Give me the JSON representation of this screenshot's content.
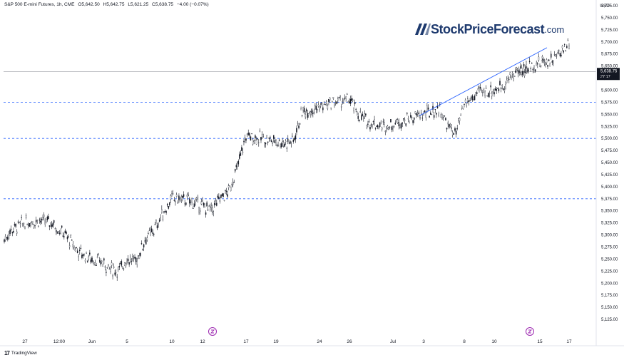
{
  "header": {
    "instrument": "S&P 500 E-mini Futures, 1h, CME",
    "open": "O5,642.50",
    "high": "H5,642.75",
    "low": "L5,621.25",
    "close": "C5,638.75",
    "change": "−4.00 (−0.07%)"
  },
  "currency": "USD",
  "brand": {
    "name": "StockPriceForecast",
    "domain": ".com"
  },
  "footer": {
    "logo": "17",
    "name": "TradingView"
  },
  "price_tag": {
    "price": "5,638.75",
    "countdown": "27:17"
  },
  "colors": {
    "candle": "#131722",
    "trendline": "#2962ff",
    "hline": "#2962ff",
    "last_price_line": "#787b86",
    "event_icon": "#9c27b0",
    "brand": "#1e3a6e"
  },
  "chart_data": {
    "type": "candlestick",
    "ylim": [
      5100,
      5775
    ],
    "y_ticks": [
      "5,775.00",
      "5,750.00",
      "5,725.00",
      "5,700.00",
      "5,675.00",
      "5,650.00",
      "5,625.00",
      "5,600.00",
      "5,575.00",
      "5,550.00",
      "5,525.00",
      "5,500.00",
      "5,475.00",
      "5,450.00",
      "5,425.00",
      "5,400.00",
      "5,375.00",
      "5,350.00",
      "5,325.00",
      "5,300.00",
      "5,275.00",
      "5,250.00",
      "5,225.00",
      "5,200.00",
      "5,175.00",
      "5,150.00",
      "5,125.00"
    ],
    "x_ticks": [
      "27",
      "12:00",
      "Jun",
      "5",
      "10",
      "12",
      "17",
      "19",
      "24",
      "26",
      "Jul",
      "3",
      "8",
      "10",
      "15",
      "17"
    ],
    "horizontal_lines": [
      5575,
      5500,
      5375
    ],
    "last_price": 5638.75,
    "trendline": {
      "from": [
        "Jul 2",
        5547
      ],
      "to": [
        "Jul 12",
        5688
      ]
    },
    "event_markers": [
      "Jun 13",
      "Jul 13"
    ],
    "path": [
      [
        "May 24",
        5290
      ],
      [
        "May 25",
        5310
      ],
      [
        "May 26",
        5318
      ],
      [
        "May 27",
        5325
      ],
      [
        "May 28",
        5330
      ],
      [
        "May 29",
        5325
      ],
      [
        "May 30",
        5300
      ],
      [
        "May 31",
        5265
      ],
      [
        "Jun 1",
        5250
      ],
      [
        "Jun 2",
        5245
      ],
      [
        "Jun 3",
        5230
      ],
      [
        "Jun 4",
        5225
      ],
      [
        "Jun 5",
        5250
      ],
      [
        "Jun 6",
        5245
      ],
      [
        "Jun 7",
        5290
      ],
      [
        "Jun 8",
        5310
      ],
      [
        "Jun 9",
        5345
      ],
      [
        "Jun 10",
        5375
      ],
      [
        "Jun 11",
        5372
      ],
      [
        "Jun 12",
        5360
      ],
      [
        "Jun 13",
        5350
      ],
      [
        "Jun 14",
        5375
      ],
      [
        "Jun 15",
        5390
      ],
      [
        "Jun 16",
        5440
      ],
      [
        "Jun 17",
        5505
      ],
      [
        "Jun 18",
        5500
      ],
      [
        "Jun 19",
        5495
      ],
      [
        "Jun 20",
        5490
      ],
      [
        "Jun 21",
        5495
      ],
      [
        "Jun 22",
        5555
      ],
      [
        "Jun 23",
        5560
      ],
      [
        "Jun 24",
        5565
      ],
      [
        "Jun 25",
        5575
      ],
      [
        "Jun 26",
        5580
      ],
      [
        "Jun 27",
        5550
      ],
      [
        "Jun 28",
        5535
      ],
      [
        "Jun 29",
        5530
      ],
      [
        "Jun 30",
        5525
      ],
      [
        "Jul 1",
        5530
      ],
      [
        "Jul 2",
        5540
      ],
      [
        "Jul 3",
        5550
      ],
      [
        "Jul 4",
        5555
      ],
      [
        "Jul 5",
        5560
      ],
      [
        "Jul 6",
        5525
      ],
      [
        "Jul 7",
        5510
      ],
      [
        "Jul 8",
        5570
      ],
      [
        "Jul 9",
        5595
      ],
      [
        "Jul 10",
        5600
      ],
      [
        "Jul 11",
        5610
      ],
      [
        "Jul 12",
        5630
      ],
      [
        "Jul 13",
        5645
      ],
      [
        "Jul 14",
        5650
      ],
      [
        "Jul 15",
        5655
      ],
      [
        "Jul 16",
        5665
      ],
      [
        "Jul 17",
        5700
      ],
      [
        "Jul 18",
        5645
      ],
      [
        "Jul 19",
        5640
      ],
      [
        "Jul 20",
        5638.75
      ]
    ]
  }
}
